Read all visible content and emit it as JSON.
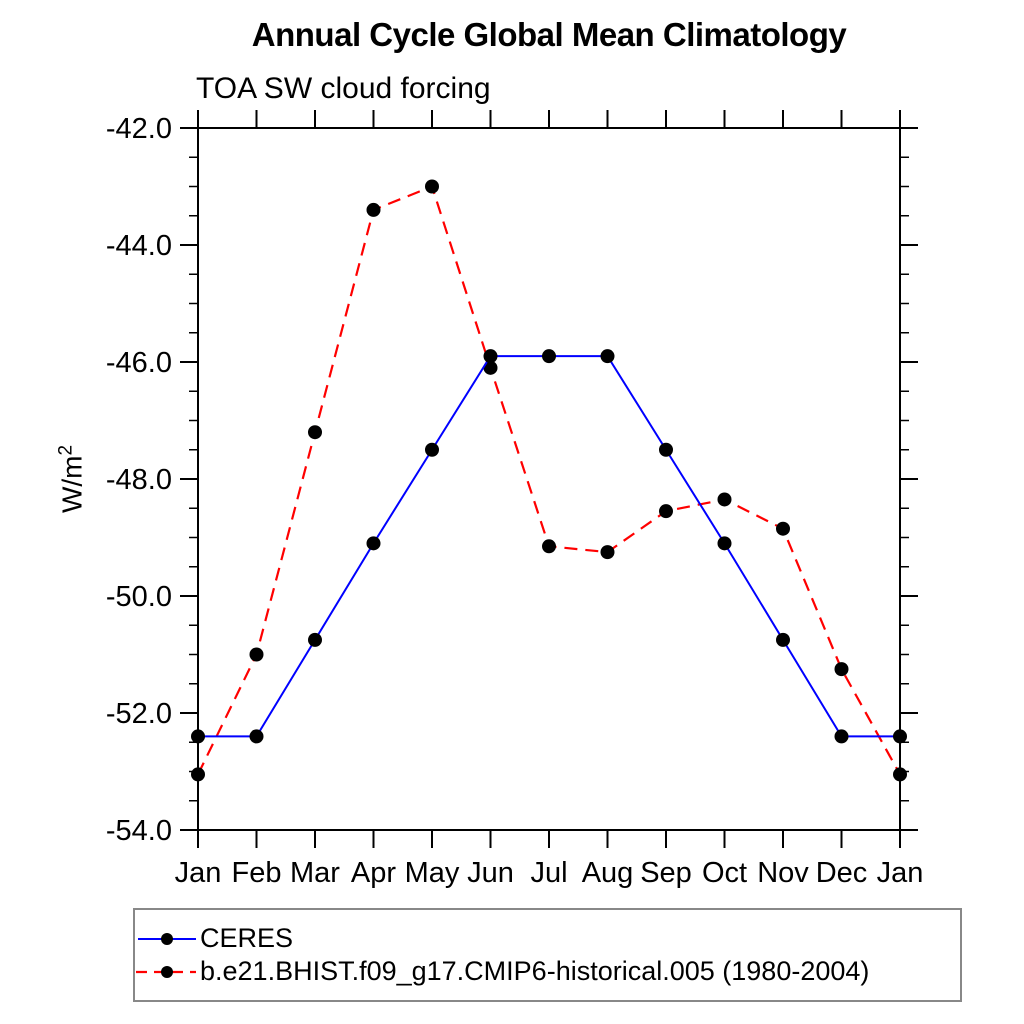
{
  "chart_data": {
    "type": "line",
    "title": "Annual Cycle Global Mean Climatology",
    "subtitle": "TOA SW cloud forcing",
    "ylabel_base": "W/m",
    "ylabel_exponent": "2",
    "x": [
      "Jan",
      "Feb",
      "Mar",
      "Apr",
      "May",
      "Jun",
      "Jul",
      "Aug",
      "Sep",
      "Oct",
      "Nov",
      "Dec",
      "Jan"
    ],
    "ylim": [
      -54.0,
      -42.0
    ],
    "y_major_step": 2.0,
    "y_minor_step": 0.5,
    "y_tick_labels": [
      "-42.0",
      "-44.0",
      "-46.0",
      "-48.0",
      "-50.0",
      "-52.0",
      "-54.0"
    ],
    "grid": false,
    "legend_position": "bottom-left",
    "axis_color": "#000000",
    "series": [
      {
        "name": "CERES",
        "color": "#0000ff",
        "line_style": "solid",
        "marker": "filled-circle",
        "marker_color": "#000000",
        "values": [
          -52.4,
          -52.4,
          -50.75,
          -49.1,
          -47.5,
          -45.9,
          -45.9,
          -45.9,
          -47.5,
          -49.1,
          -50.75,
          -52.4,
          -52.4
        ]
      },
      {
        "name": "b.e21.BHIST.f09_g17.CMIP6-historical.005 (1980-2004)",
        "color": "#ff0000",
        "line_style": "dashed",
        "marker": "filled-circle",
        "marker_color": "#000000",
        "values": [
          -53.05,
          -51.0,
          -47.2,
          -43.4,
          -43.0,
          -46.1,
          -49.15,
          -49.25,
          -48.55,
          -48.35,
          -48.85,
          -51.25,
          -53.05
        ]
      }
    ]
  }
}
